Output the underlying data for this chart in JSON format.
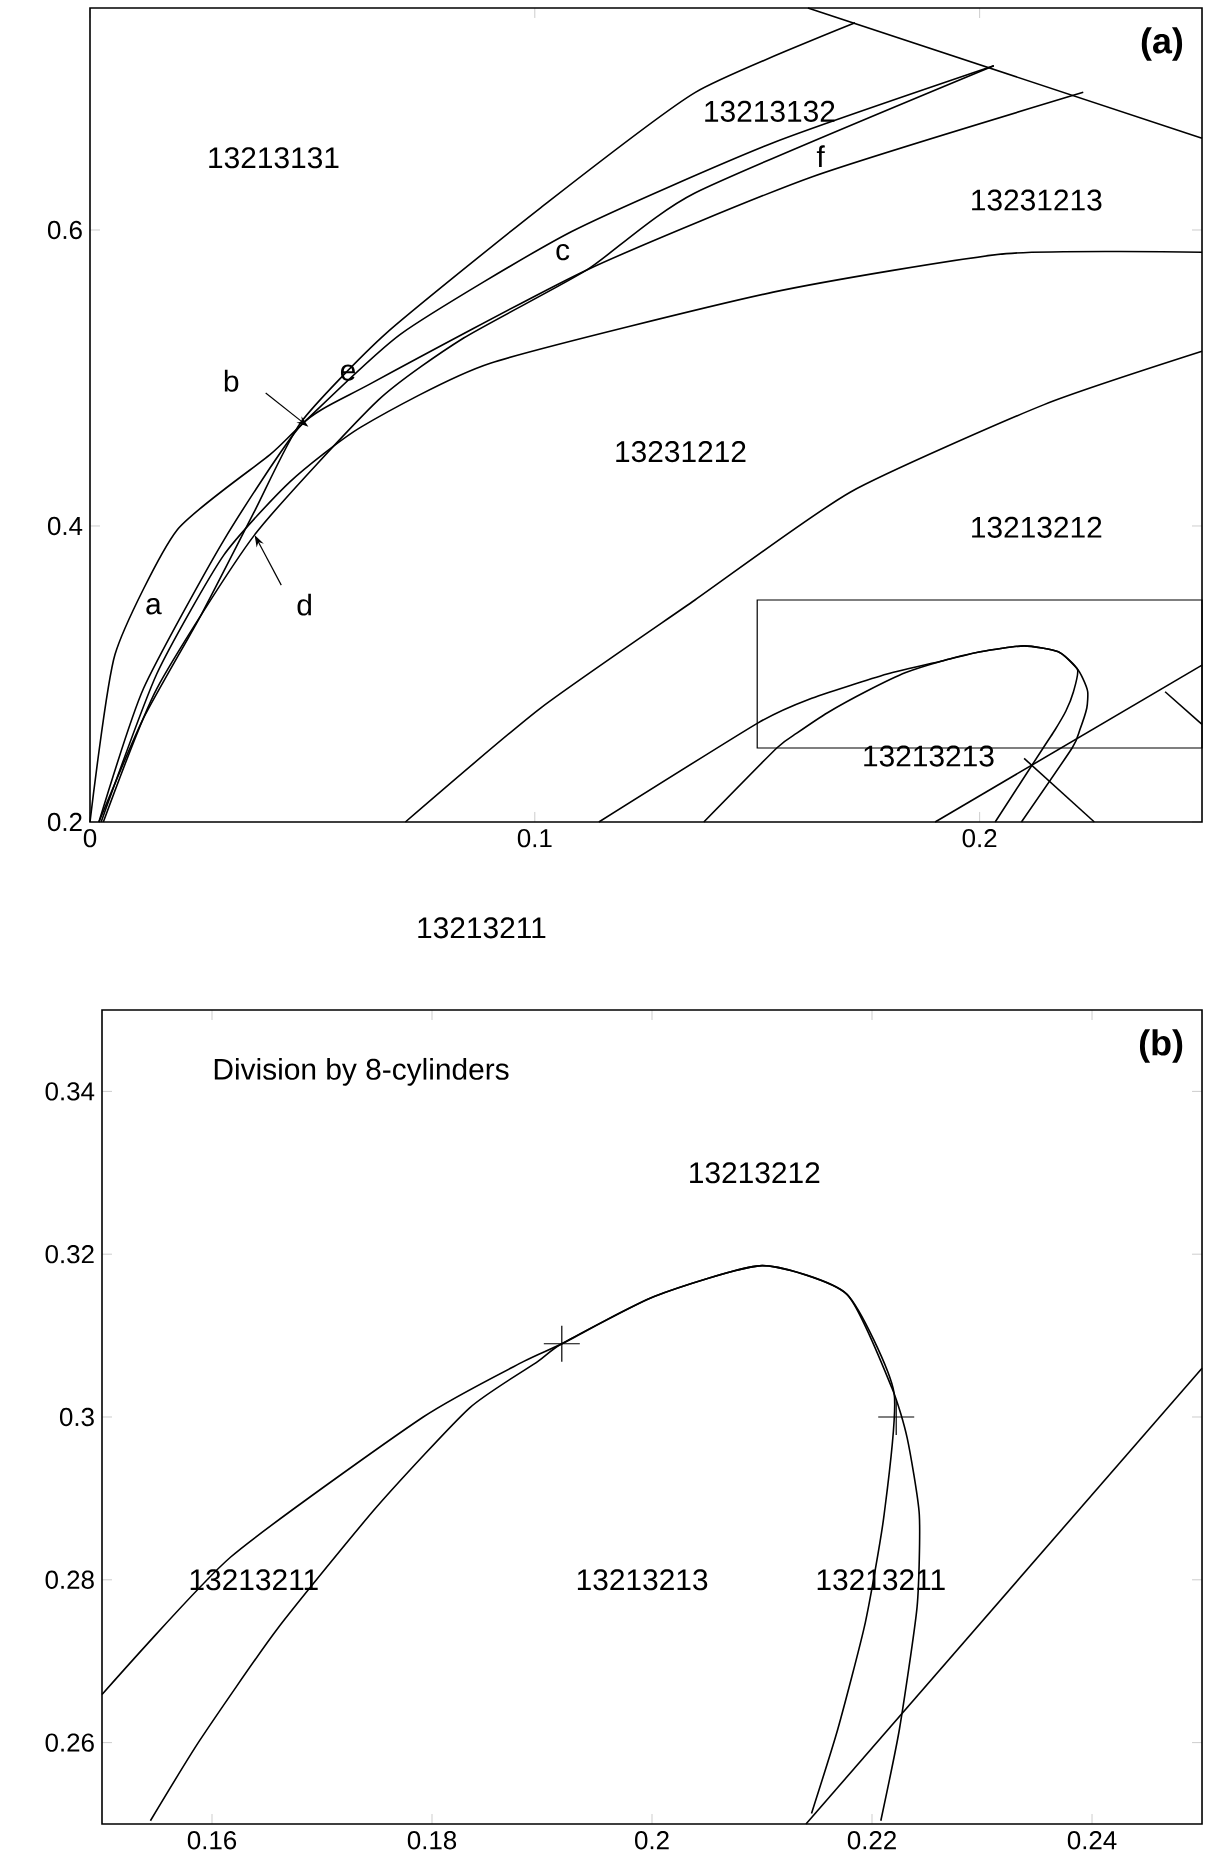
{
  "chart_data": [
    {
      "type": "line",
      "title": "(a)",
      "xlim": [
        0,
        0.25
      ],
      "ylim": [
        0.2,
        0.75
      ],
      "xticks": [
        0,
        0.1,
        0.2
      ],
      "yticks": [
        0.2,
        0.4,
        0.6
      ],
      "series": [
        {
          "color": "#000000",
          "x": [
            0.002,
            0.012,
            0.025,
            0.037,
            0.0474,
            0.0665,
            0.1013,
            0.1361,
            0.172
          ],
          "values": [
            0.2,
            0.27,
            0.34,
            0.41,
            0.47,
            0.53,
            0.615,
            0.693,
            0.74
          ]
        },
        {
          "color": "#000000",
          "x": [
            0,
            0.0056,
            0.0195,
            0.0404,
            0.0474,
            0.07,
            0.1083,
            0.1536,
            0.2032
          ],
          "values": [
            0.2,
            0.313,
            0.397,
            0.448,
            0.468,
            0.53,
            0.599,
            0.659,
            0.711
          ]
        },
        {
          "color": "#000000",
          "x": [
            0.002,
            0.012,
            0.03,
            0.0474,
            0.063,
            0.1117,
            0.1624,
            0.2233
          ],
          "values": [
            0.2,
            0.29,
            0.39,
            0.468,
            0.496,
            0.573,
            0.636,
            0.693
          ]
        },
        {
          "color": "#000000",
          "x": [
            0.003,
            0.015,
            0.037,
            0.0648,
            0.084,
            0.1117,
            0.136,
            0.2032
          ],
          "values": [
            0.2,
            0.29,
            0.394,
            0.485,
            0.527,
            0.573,
            0.625,
            0.711
          ]
        },
        {
          "color": "#000000",
          "x": [
            0.0025,
            0.015,
            0.03,
            0.045,
            0.061,
            0.09,
            0.1536,
            0.206,
            0.25
          ],
          "values": [
            0.2,
            0.3,
            0.38,
            0.43,
            0.467,
            0.51,
            0.558,
            0.584,
            0.585
          ]
        },
        {
          "color": "#000000",
          "x": [
            0.1614,
            0.25
          ],
          "values": [
            0.75,
            0.662
          ]
        },
        {
          "color": "#000000",
          "x": [
            0.0709,
            0.1013,
            0.136,
            0.171,
            0.2145,
            0.25
          ],
          "values": [
            0.2,
            0.277,
            0.35,
            0.423,
            0.482,
            0.518
          ]
        },
        {
          "color": "#000000",
          "x": [
            0.1144,
            0.1502,
            0.1617,
            0.1792,
            0.1918,
            0.2002,
            0.21,
            0.2177,
            0.2218,
            0.2232,
            0.2243,
            0.2241,
            0.2225,
            0.2208,
            0.2094
          ],
          "values": [
            0.2,
            0.267,
            0.283,
            0.3,
            0.309,
            0.315,
            0.319,
            0.315,
            0.304,
            0.297,
            0.288,
            0.277,
            0.262,
            0.25,
            0.2
          ]
        },
        {
          "color": "#000000",
          "x": [
            0.138,
            0.1544,
            0.1589,
            0.1659,
            0.175,
            0.1834,
            0.1918,
            0.2002,
            0.21,
            0.2177,
            0.222,
            0.2211,
            0.2194,
            0.2169,
            0.2145,
            0.2035
          ],
          "values": [
            0.2,
            0.25,
            0.26,
            0.274,
            0.289,
            0.301,
            0.309,
            0.315,
            0.319,
            0.315,
            0.303,
            0.288,
            0.275,
            0.262,
            0.251,
            0.2
          ]
        },
        {
          "color": "#000000",
          "x": [
            0.19,
            0.25
          ],
          "values": [
            0.2,
            0.306
          ]
        },
        {
          "color": "#000000",
          "x": [
            0.21,
            0.2258
          ],
          "values": [
            0.243,
            0.2
          ]
        },
        {
          "color": "#000000",
          "x": [
            0.2417,
            0.25
          ],
          "values": [
            0.288,
            0.266
          ]
        }
      ],
      "annotations": [
        "13213131",
        "13213132",
        "13231213",
        "13231212",
        "13213212",
        "13213213",
        "a",
        {
          "text": "b",
          "x": 0.0491,
          "y": 0.467
        },
        "c",
        {
          "text": "d",
          "x": 0.037,
          "y": 0.394
        },
        "e",
        "f",
        "13213211"
      ]
    },
    {
      "type": "line",
      "title": "(b)",
      "subtitle": "Division by 8-cylinders",
      "xlim": [
        0.15,
        0.25
      ],
      "ylim": [
        0.25,
        0.35
      ],
      "xticks": [
        0.16,
        0.18,
        0.2,
        0.22,
        0.24
      ],
      "yticks": [
        0.26,
        0.28,
        0.3,
        0.32,
        0.34
      ],
      "series": [
        {
          "color": "#000000",
          "x": [
            0.15,
            0.1617,
            0.1792,
            0.1883,
            0.1918,
            0.2002,
            0.21,
            0.2177,
            0.2218,
            0.2232,
            0.2243,
            0.2241,
            0.2225,
            0.2208
          ],
          "values": [
            0.2659,
            0.2828,
            0.3,
            0.3068,
            0.309,
            0.3148,
            0.3186,
            0.3151,
            0.3036,
            0.2974,
            0.288,
            0.2767,
            0.2617,
            0.2504
          ]
        },
        {
          "color": "#000000",
          "x": [
            0.1544,
            0.1589,
            0.1659,
            0.175,
            0.1834,
            0.1896,
            0.1918,
            0.2002,
            0.21,
            0.2177,
            0.222,
            0.2211,
            0.2194,
            0.2169,
            0.2145
          ],
          "values": [
            0.2504,
            0.2603,
            0.2739,
            0.289,
            0.3011,
            0.3068,
            0.309,
            0.3148,
            0.3186,
            0.3151,
            0.303,
            0.288,
            0.2748,
            0.2617,
            0.2513
          ]
        },
        {
          "color": "#000000",
          "x": [
            0.214,
            0.25
          ],
          "values": [
            0.25,
            0.306
          ]
        },
        {
          "type": "scatter",
          "marker": "cross",
          "color": "#000000",
          "x": [
            0.1918,
            0.2222
          ],
          "values": [
            0.309,
            0.3
          ]
        }
      ],
      "annotations": [
        "13213212",
        "13213211",
        "13213213",
        "13213211"
      ]
    }
  ]
}
